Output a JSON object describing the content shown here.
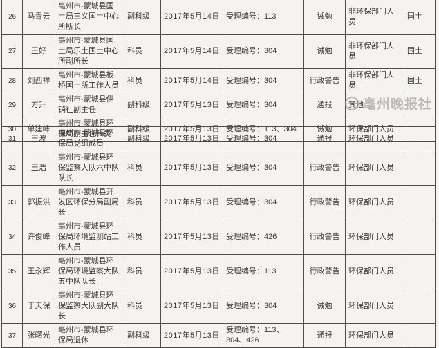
{
  "page": {
    "background": "#f5f3f0",
    "border_color": "#4d4d4d",
    "text_color": "#3a3a3a"
  },
  "watermark": {
    "icon": "newspaper-logo-icon",
    "text": "亳州晚报社",
    "color": "#9e928f"
  },
  "tables": [
    {
      "rows": [
        {
          "num": "26",
          "name": "马青云",
          "position": "亳州市-蒙城县国土局三义国土中心所所长",
          "rank": "副科级",
          "date": "2017年5月14日",
          "case": "受理编号：113",
          "punishment": "诫勉",
          "category": "非环保部门人员",
          "dept": "国土"
        },
        {
          "num": "27",
          "name": "王好",
          "position": "亳州市-蒙城县国土局乐土国土中心所副所长",
          "rank": "科员",
          "date": "2017年5月14日",
          "case": "受理编号：304",
          "punishment": "诫勉",
          "category": "非环保部门人员",
          "dept": "国土"
        },
        {
          "num": "28",
          "name": "刘西祥",
          "position": "亳州市-蒙城县板桥国土所工作人员",
          "rank": "科员",
          "date": "2017年5月14日",
          "case": "受理编号：304",
          "punishment": "行政警告",
          "category": "非环保部门人员",
          "dept": "国土"
        },
        {
          "num": "29",
          "name": "方升",
          "position": "亳州市-蒙城县供销社副主任",
          "rank": "副科级",
          "date": "2017年5月13日",
          "case": "受理编号：304",
          "punishment": "通报",
          "category": "其他",
          "dept": ""
        },
        {
          "num": "30",
          "name": "单建峰",
          "position": "亳州市-蒙城县环保局副主任科员",
          "rank": "副科级",
          "date": "2017年5月13日",
          "case": "受理编号：113、304",
          "punishment": "诫勉",
          "category": "环保部门人员",
          "dept": ""
        }
      ]
    },
    {
      "rows": [
        {
          "num": "31",
          "name": "王波",
          "position": "亳州市-蒙城县环保局党组成员",
          "rank": "副科级",
          "date": "2017年5月13日",
          "case": "受理编号：304",
          "punishment": "通报",
          "category": "环保部门人员",
          "dept": ""
        },
        {
          "num": "32",
          "name": "王浩",
          "position": "亳州市-蒙城县环保监察大队六中队队长",
          "rank": "科员",
          "date": "2017年5月13日",
          "case": "受理编号：304",
          "punishment": "行政警告",
          "category": "环保部门人员",
          "dept": ""
        },
        {
          "num": "33",
          "name": "郭振洪",
          "position": "亳州市-蒙城县开发区环保分局副局长",
          "rank": "科员",
          "date": "2017年5月13日",
          "case": "受理编号：304",
          "punishment": "行政警告",
          "category": "环保部门人员",
          "dept": ""
        },
        {
          "num": "34",
          "name": "许俊峰",
          "position": "亳州市-蒙城县环保局环境监测站工作人员",
          "rank": "科员",
          "date": "2017年5月13日",
          "case": "受理编号：426",
          "punishment": "行政警告",
          "category": "环保部门人员",
          "dept": ""
        },
        {
          "num": "35",
          "name": "王永辉",
          "position": "亳州市-蒙城县环保局环境监察大队五中队队长",
          "rank": "科员",
          "date": "2017年5月13日",
          "case": "受理编号：113",
          "punishment": "行政警告",
          "category": "环保部门人员",
          "dept": ""
        },
        {
          "num": "36",
          "name": "于天保",
          "position": "亳州市-蒙城县环保监察大队副大队长",
          "rank": "科员",
          "date": "2017年5月13日",
          "case": "受理编号：304",
          "punishment": "诫勉",
          "category": "环保部门人员",
          "dept": ""
        },
        {
          "num": "37",
          "name": "张曙光",
          "position": "亳州市-蒙城县环保局退休",
          "rank": "副科级",
          "date": "2017年5月13日",
          "case": "受理编号：113、304、426",
          "punishment": "通报",
          "category": "环保部门人员",
          "dept": ""
        }
      ]
    }
  ]
}
